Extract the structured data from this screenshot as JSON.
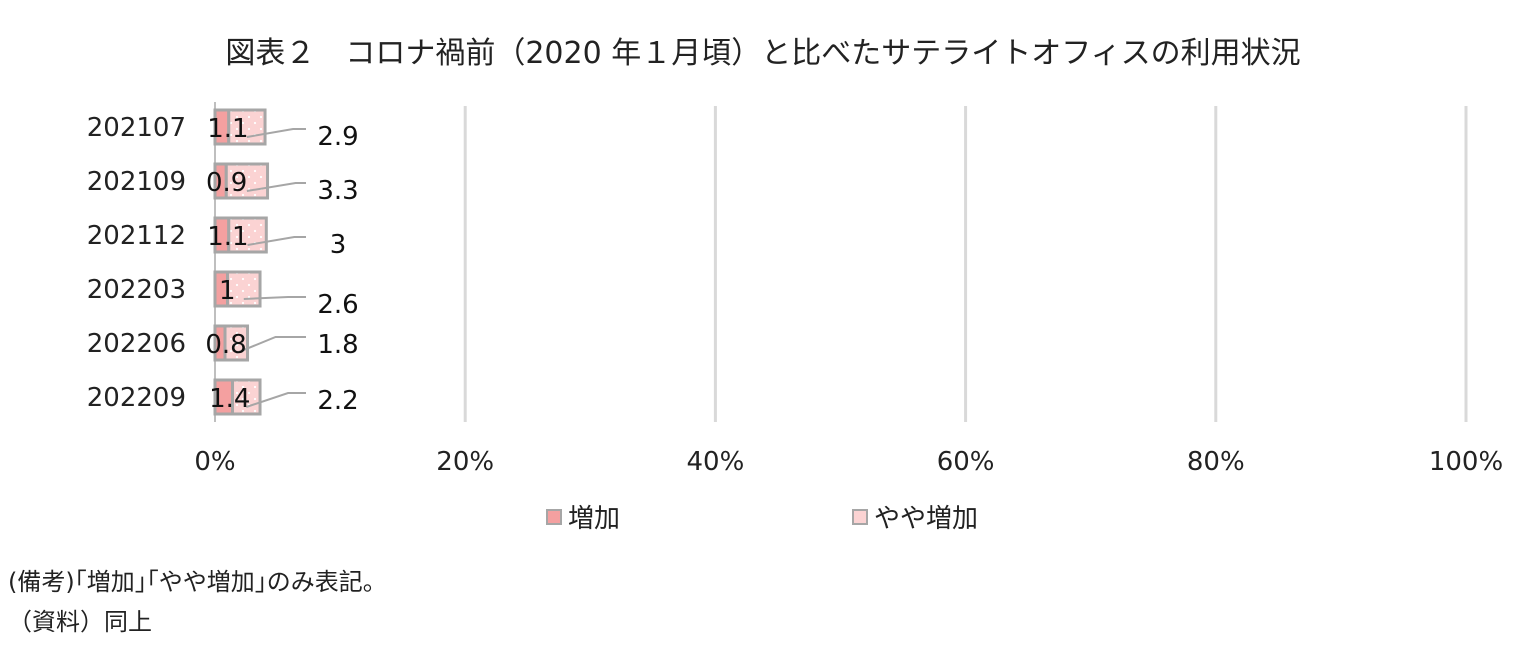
{
  "title": "図表２　コロナ禍前（2020 年１月頃）と比べたサテライトオフィスの利用状況",
  "chart_data": {
    "type": "bar",
    "orientation": "horizontal",
    "stacked": "percent",
    "categories": [
      "202107",
      "202109",
      "202112",
      "202203",
      "202206",
      "202209"
    ],
    "series": [
      {
        "name": "増加",
        "values": [
          1.1,
          0.9,
          1.1,
          1,
          0.8,
          1.4
        ],
        "color": "#f4a0a0"
      },
      {
        "name": "やや増加",
        "values": [
          2.9,
          3.3,
          3,
          2.6,
          1.8,
          2.2
        ],
        "color": "#fbd3d3"
      }
    ],
    "xlim": [
      0,
      100
    ],
    "x_ticks": [
      "0%",
      "20%",
      "40%",
      "60%",
      "80%",
      "100%"
    ],
    "grid": true,
    "legend": "bottom"
  },
  "notes": {
    "remark": "(備考)｢増加｣｢やや増加｣のみ表記。",
    "source": "（資料）同上"
  }
}
